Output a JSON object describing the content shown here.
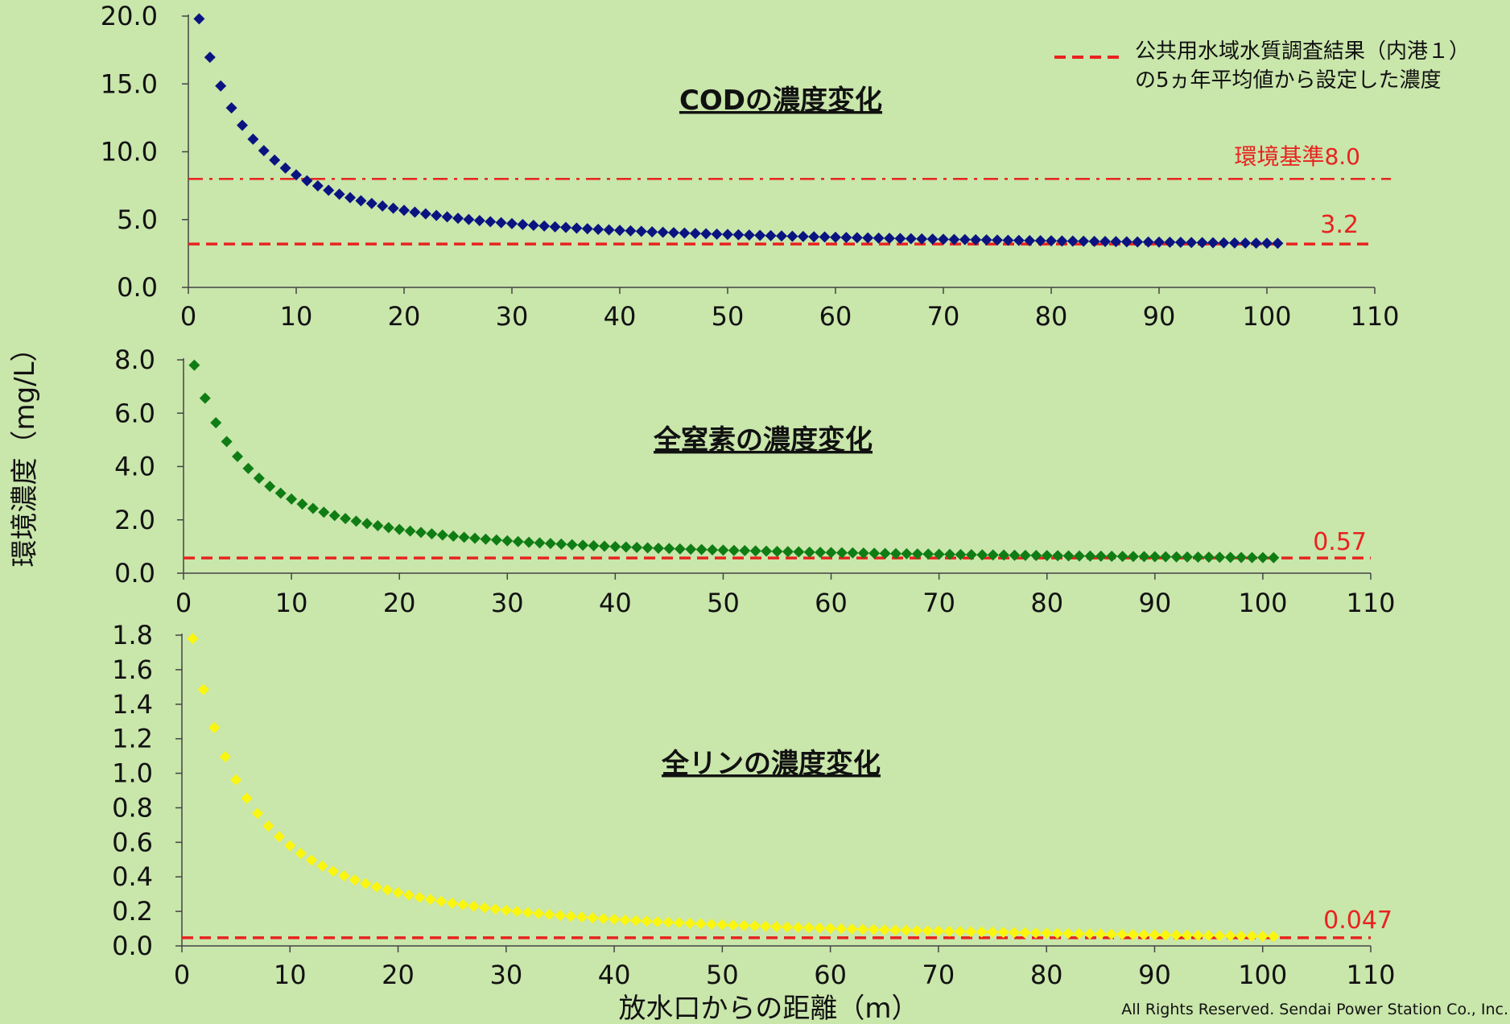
{
  "xlabel": "放水口からの距離（m）",
  "ylabel": "環境濃度（mg/L）",
  "legend": {
    "line1": "公共用水域水質調査結果（内港１）",
    "line2": "の5ヵ年平均値から設定した濃度",
    "color": "#e8231f"
  },
  "copyright": "All Rights Reserved. Sendai Power Station Co., Inc.",
  "chart_data": [
    {
      "type": "scatter",
      "title": "CODの濃度変化",
      "marker_color": "#0a1480",
      "xlim": [
        0,
        110
      ],
      "ylim": [
        0,
        20
      ],
      "xticks": [
        "0",
        "10",
        "20",
        "30",
        "40",
        "50",
        "60",
        "70",
        "80",
        "90",
        "100",
        "110"
      ],
      "yticks": [
        "0.0",
        "5.0",
        "10.0",
        "15.0",
        "20.0"
      ],
      "series": [
        {
          "x_start": 1,
          "x_end": 101,
          "y_start": 19.8,
          "y_end": 3.25,
          "decay": 6.5
        }
      ],
      "reference_lines": [
        {
          "value": 3.2,
          "label": "3.2",
          "style": "dashed"
        },
        {
          "value": 8.0,
          "label": "環境基準8.0",
          "style": "dashdot"
        }
      ]
    },
    {
      "type": "scatter",
      "title": "全窒素の濃度変化",
      "marker_color": "#0f7d14",
      "xlim": [
        0,
        110
      ],
      "ylim": [
        0,
        8
      ],
      "xticks": [
        "0",
        "10",
        "20",
        "30",
        "40",
        "50",
        "60",
        "70",
        "80",
        "90",
        "100",
        "110"
      ],
      "yticks": [
        "0.0",
        "2.0",
        "4.0",
        "6.0",
        "8.0"
      ],
      "series": [
        {
          "x_start": 1,
          "x_end": 101,
          "y_start": 7.8,
          "y_end": 0.58,
          "decay": 6.5
        }
      ],
      "reference_lines": [
        {
          "value": 0.57,
          "label": "0.57",
          "style": "dashed"
        }
      ]
    },
    {
      "type": "scatter",
      "title": "全リンの濃度変化",
      "marker_color": "#fbf60f",
      "xlim": [
        0,
        110
      ],
      "ylim": [
        0,
        1.8
      ],
      "xticks": [
        "0",
        "10",
        "20",
        "30",
        "40",
        "50",
        "60",
        "70",
        "80",
        "90",
        "100",
        "110"
      ],
      "yticks": [
        "0.0",
        "0.2",
        "0.4",
        "0.6",
        "0.8",
        "1.0",
        "1.2",
        "1.4",
        "1.6",
        "1.8"
      ],
      "series": [
        {
          "x_start": 1,
          "x_end": 101,
          "y_start": 1.78,
          "y_end": 0.055,
          "decay": 6.5
        }
      ],
      "reference_lines": [
        {
          "value": 0.047,
          "label": "0.047",
          "style": "dashed"
        }
      ]
    }
  ]
}
